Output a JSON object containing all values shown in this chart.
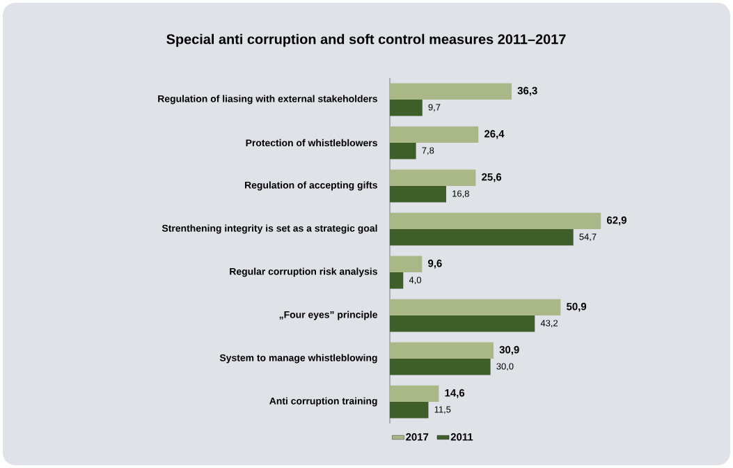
{
  "chart_data": {
    "type": "bar",
    "orientation": "horizontal",
    "title": "Special anti corruption and soft control measures 2011–2017",
    "categories": [
      "Regulation of liasing with external stakeholders",
      "Protection of whistleblowers",
      "Regulation of accepting gifts",
      "Strenthening integrity is set as a strategic goal",
      "Regular corruption risk analysis",
      "„Four eyes” principle",
      "System to manage whistleblowing",
      "Anti corruption training"
    ],
    "series": [
      {
        "name": "2017",
        "color": "#a9b886",
        "values": [
          36.3,
          26.4,
          25.6,
          62.9,
          9.6,
          50.9,
          30.9,
          14.6
        ],
        "value_labels": [
          "36,3",
          "26,4",
          "25,6",
          "62,9",
          "9,6",
          "50,9",
          "30,9",
          "14,6"
        ]
      },
      {
        "name": "2011",
        "color": "#3e5f2a",
        "values": [
          9.7,
          7.8,
          16.8,
          54.7,
          4.0,
          43.2,
          30.0,
          11.5
        ],
        "value_labels": [
          "9,7",
          "7,8",
          "16,8",
          "54,7",
          "4,0",
          "43,2",
          "30,0",
          "11,5"
        ]
      }
    ],
    "legend": "bottom"
  }
}
